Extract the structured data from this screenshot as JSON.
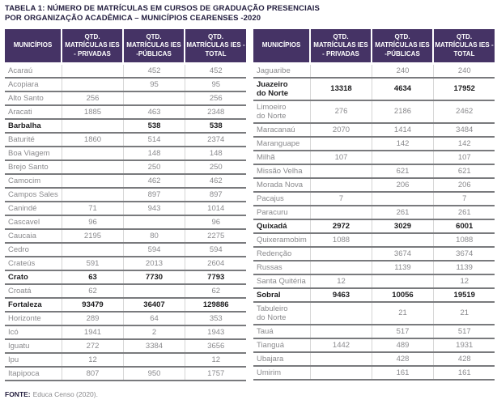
{
  "title": {
    "line1": "TABELA 1: NÚMERO DE MATRÍCULAS EM CURSOS DE GRADUAÇÃO PRESENCIAIS",
    "line2": "POR ORGANIZAÇÃO ACADÊMICA – MUNICÍPIOS CEARENSES -2020"
  },
  "columns": [
    "MUNICÍPIOS",
    "QTD. MATRÍCULAS IES - PRIVADAS",
    "QTD. MATRÍCULAS IES -PÚBLICAS",
    "QTD. MATRÍCULAS IES -TOTAL"
  ],
  "tables": {
    "left": {
      "rows": [
        {
          "name": "Acaraú",
          "privadas": "",
          "publicas": "452",
          "total": "452",
          "bold": false
        },
        {
          "name": "Acopiara",
          "privadas": "",
          "publicas": "95",
          "total": "95",
          "bold": false
        },
        {
          "name": "Alto Santo",
          "privadas": "256",
          "publicas": "",
          "total": "256",
          "bold": false
        },
        {
          "name": "Aracati",
          "privadas": "1885",
          "publicas": "463",
          "total": "2348",
          "bold": false
        },
        {
          "name": "Barbalha",
          "privadas": "",
          "publicas": "538",
          "total": "538",
          "bold": true
        },
        {
          "name": "Baturité",
          "privadas": "1860",
          "publicas": "514",
          "total": "2374",
          "bold": false
        },
        {
          "name": "Boa Viagem",
          "privadas": "",
          "publicas": "148",
          "total": "148",
          "bold": false
        },
        {
          "name": "Brejo Santo",
          "privadas": "",
          "publicas": "250",
          "total": "250",
          "bold": false
        },
        {
          "name": "Camocim",
          "privadas": "",
          "publicas": "462",
          "total": "462",
          "bold": false
        },
        {
          "name": "Campos Sales",
          "privadas": "",
          "publicas": "897",
          "total": "897",
          "bold": false
        },
        {
          "name": "Canindé",
          "privadas": "71",
          "publicas": "943",
          "total": "1014",
          "bold": false
        },
        {
          "name": "Cascavel",
          "privadas": "96",
          "publicas": "",
          "total": "96",
          "bold": false
        },
        {
          "name": "Caucaia",
          "privadas": "2195",
          "publicas": "80",
          "total": "2275",
          "bold": false
        },
        {
          "name": "Cedro",
          "privadas": "",
          "publicas": "594",
          "total": "594",
          "bold": false
        },
        {
          "name": "Crateús",
          "privadas": "591",
          "publicas": "2013",
          "total": "2604",
          "bold": false
        },
        {
          "name": "Crato",
          "privadas": "63",
          "publicas": "7730",
          "total": "7793",
          "bold": true
        },
        {
          "name": "Croatá",
          "privadas": "62",
          "publicas": "",
          "total": "62",
          "bold": false
        },
        {
          "name": "Fortaleza",
          "privadas": "93479",
          "publicas": "36407",
          "total": "129886",
          "bold": true
        },
        {
          "name": "Horizonte",
          "privadas": "289",
          "publicas": "64",
          "total": "353",
          "bold": false
        },
        {
          "name": "Icó",
          "privadas": "1941",
          "publicas": "2",
          "total": "1943",
          "bold": false
        },
        {
          "name": "Iguatu",
          "privadas": "272",
          "publicas": "3384",
          "total": "3656",
          "bold": false
        },
        {
          "name": "Ipu",
          "privadas": "12",
          "publicas": "",
          "total": "12",
          "bold": false
        },
        {
          "name": "Itapipoca",
          "privadas": "807",
          "publicas": "950",
          "total": "1757",
          "bold": false
        }
      ]
    },
    "right": {
      "rows": [
        {
          "name": "Jaguaribe",
          "privadas": "",
          "publicas": "240",
          "total": "240",
          "bold": false
        },
        {
          "name": "Juazeiro\ndo Norte",
          "privadas": "13318",
          "publicas": "4634",
          "total": "17952",
          "bold": true
        },
        {
          "name": "Limoeiro\ndo Norte",
          "privadas": "276",
          "publicas": "2186",
          "total": "2462",
          "bold": false
        },
        {
          "name": "Maracanaú",
          "privadas": "2070",
          "publicas": "1414",
          "total": "3484",
          "bold": false
        },
        {
          "name": "Maranguape",
          "privadas": "",
          "publicas": "142",
          "total": "142",
          "bold": false
        },
        {
          "name": "Milhã",
          "privadas": "107",
          "publicas": "",
          "total": "107",
          "bold": false
        },
        {
          "name": "Missão Velha",
          "privadas": "",
          "publicas": "621",
          "total": "621",
          "bold": false
        },
        {
          "name": "Morada Nova",
          "privadas": "",
          "publicas": "206",
          "total": "206",
          "bold": false
        },
        {
          "name": "Pacajus",
          "privadas": "7",
          "publicas": "",
          "total": "7",
          "bold": false
        },
        {
          "name": "Paracuru",
          "privadas": "",
          "publicas": "261",
          "total": "261",
          "bold": false
        },
        {
          "name": "Quixadá",
          "privadas": "2972",
          "publicas": "3029",
          "total": "6001",
          "bold": true
        },
        {
          "name": "Quixeramobim",
          "privadas": "1088",
          "publicas": "",
          "total": "1088",
          "bold": false
        },
        {
          "name": "Redenção",
          "privadas": "",
          "publicas": "3674",
          "total": "3674",
          "bold": false
        },
        {
          "name": "Russas",
          "privadas": "",
          "publicas": "1139",
          "total": "1139",
          "bold": false
        },
        {
          "name": "Santa Quitéria",
          "privadas": "12",
          "publicas": "",
          "total": "12",
          "bold": false
        },
        {
          "name": "Sobral",
          "privadas": "9463",
          "publicas": "10056",
          "total": "19519",
          "bold": true
        },
        {
          "name": "Tabuleiro\ndo Norte",
          "privadas": "",
          "publicas": "21",
          "total": "21",
          "bold": false
        },
        {
          "name": "Tauá",
          "privadas": "",
          "publicas": "517",
          "total": "517",
          "bold": false
        },
        {
          "name": "Tianguá",
          "privadas": "1442",
          "publicas": "489",
          "total": "1931",
          "bold": false
        },
        {
          "name": "Ubajara",
          "privadas": "",
          "publicas": "428",
          "total": "428",
          "bold": false
        },
        {
          "name": "Umirim",
          "privadas": "",
          "publicas": "161",
          "total": "161",
          "bold": false
        }
      ]
    }
  },
  "footer": {
    "label": "FONTE:",
    "text": "Educa Censo (2020)."
  },
  "colors": {
    "header_bg": "#453365",
    "header_text": "#ffffff",
    "title_text": "#221d3e",
    "row_text": "#8a8a8d",
    "bold_row_text": "#1c1c1e",
    "row_border": "#797a7d",
    "column_divider": "#d6d6d6"
  }
}
